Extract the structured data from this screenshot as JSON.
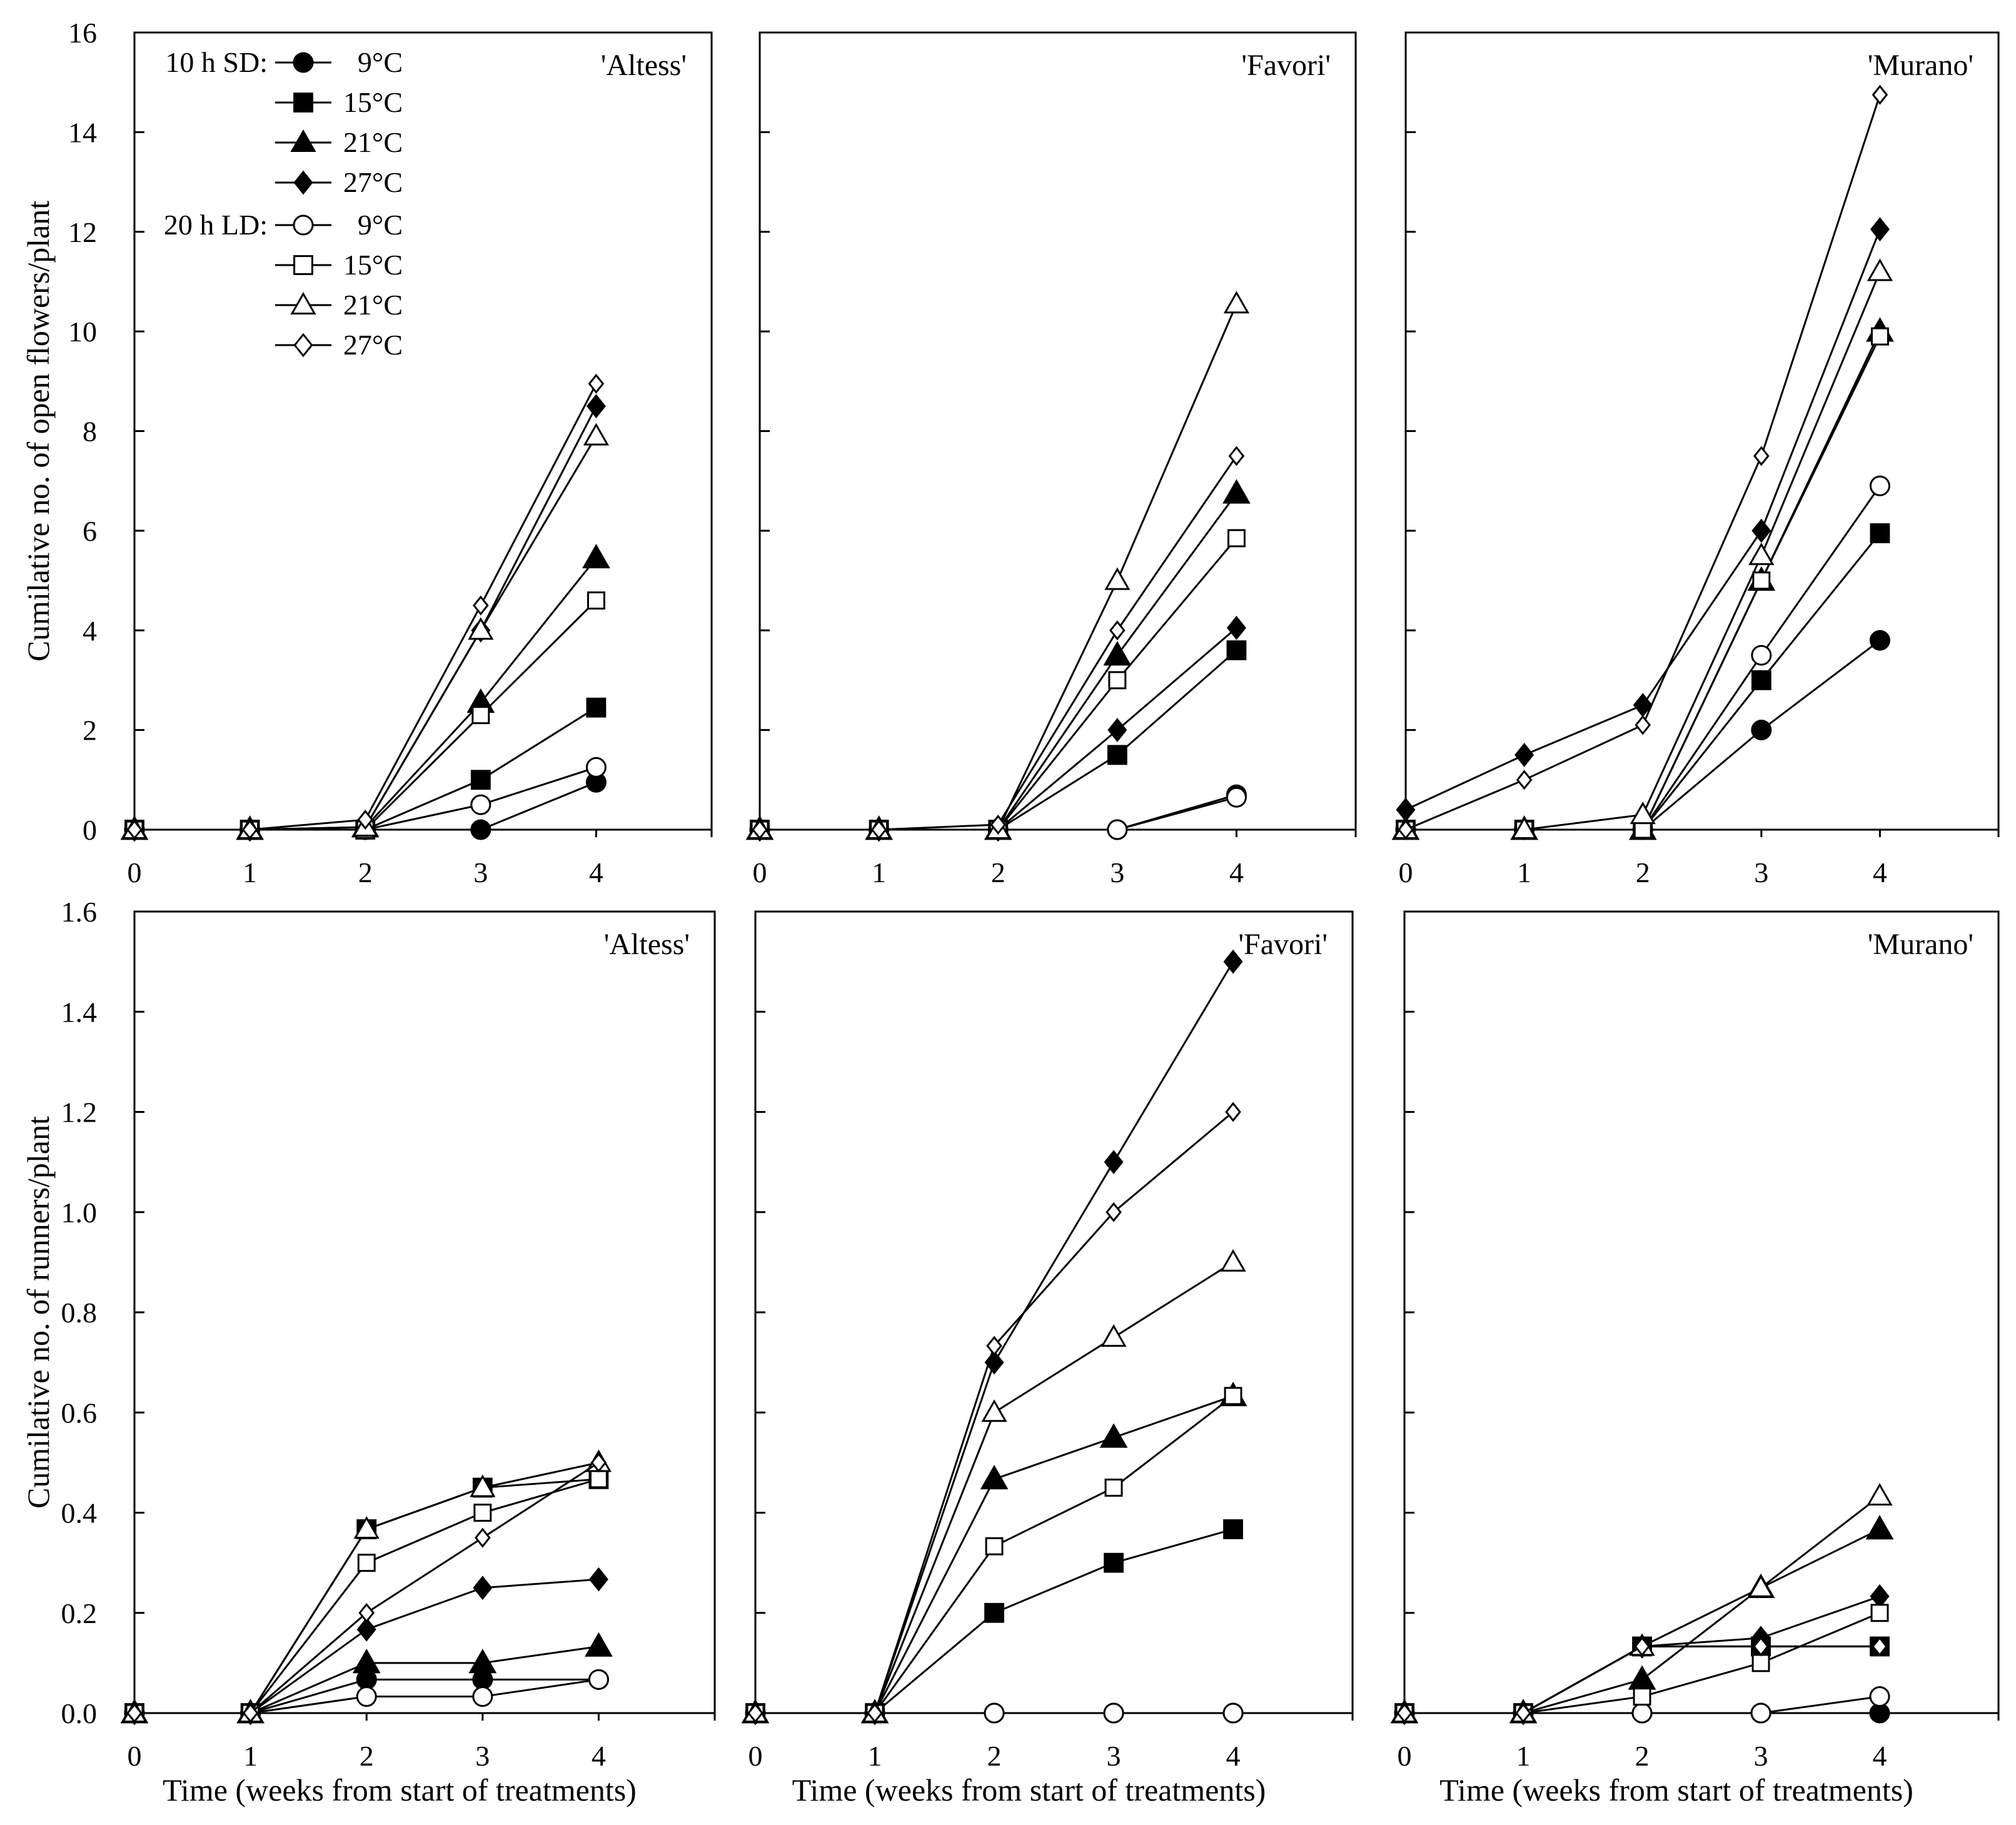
{
  "figure": {
    "legend_header_sd": "10 h SD:",
    "legend_header_ld": "20 h LD:",
    "legend": [
      {
        "label": "9°C",
        "marker": "circle",
        "filled": true
      },
      {
        "label": "15°C",
        "marker": "square",
        "filled": true
      },
      {
        "label": "21°C",
        "marker": "triangle",
        "filled": true
      },
      {
        "label": "27°C",
        "marker": "diamond",
        "filled": true
      },
      {
        "label": "9°C",
        "marker": "circle",
        "filled": false
      },
      {
        "label": "15°C",
        "marker": "square",
        "filled": false
      },
      {
        "label": "21°C",
        "marker": "triangle",
        "filled": false
      },
      {
        "label": "27°C",
        "marker": "diamond",
        "filled": false
      }
    ]
  },
  "chart_data": [
    {
      "type": "line",
      "title": "'Altess'",
      "ylabel": "Cumilative no. of open flowers/plant",
      "xlabel": "",
      "x": [
        0,
        1,
        2,
        3,
        4
      ],
      "xlim": [
        0,
        5
      ],
      "ylim": [
        0,
        16
      ],
      "yticks": [
        "0",
        "2",
        "4",
        "6",
        "8",
        "10",
        "12",
        "14",
        "16"
      ],
      "xticks": [
        "0",
        "1",
        "2",
        "3",
        "4"
      ],
      "series": [
        {
          "name": "10 h SD 9°C",
          "values": [
            0,
            0,
            0,
            0,
            0.95
          ]
        },
        {
          "name": "10 h SD 15°C",
          "values": [
            0,
            0,
            0,
            1.0,
            2.45
          ]
        },
        {
          "name": "10 h SD 21°C",
          "values": [
            0,
            0,
            0.05,
            2.55,
            5.45
          ]
        },
        {
          "name": "10 h SD 27°C",
          "values": [
            0,
            0,
            0.05,
            4.0,
            8.5
          ]
        },
        {
          "name": "20 h LD 9°C",
          "values": [
            0,
            0,
            0,
            0.5,
            1.25
          ]
        },
        {
          "name": "20 h LD 15°C",
          "values": [
            0,
            0,
            0,
            2.3,
            4.6
          ]
        },
        {
          "name": "20 h LD 21°C",
          "values": [
            0,
            0,
            0.05,
            4.0,
            7.9
          ]
        },
        {
          "name": "20 h LD 27°C",
          "values": [
            0,
            0,
            0.2,
            4.5,
            8.95
          ]
        }
      ]
    },
    {
      "type": "line",
      "title": "'Favori'",
      "ylabel": "",
      "xlabel": "",
      "x": [
        0,
        1,
        2,
        3,
        4
      ],
      "xlim": [
        0,
        5
      ],
      "ylim": [
        0,
        16
      ],
      "yticks": [],
      "xticks": [
        "0",
        "1",
        "2",
        "3",
        "4"
      ],
      "series": [
        {
          "name": "10 h SD 9°C",
          "values": [
            0,
            0,
            0,
            0,
            0.7
          ]
        },
        {
          "name": "10 h SD 15°C",
          "values": [
            0,
            0,
            0,
            1.5,
            3.6
          ]
        },
        {
          "name": "10 h SD 21°C",
          "values": [
            0,
            0,
            0,
            3.5,
            6.75
          ]
        },
        {
          "name": "10 h SD 27°C",
          "values": [
            0,
            0,
            0,
            2.0,
            4.05
          ]
        },
        {
          "name": "20 h LD 9°C",
          "values": [
            0,
            0,
            0,
            0,
            0.65
          ]
        },
        {
          "name": "20 h LD 15°C",
          "values": [
            0,
            0,
            0,
            3.0,
            5.85
          ]
        },
        {
          "name": "20 h LD 21°C",
          "values": [
            0,
            0,
            0,
            5.0,
            10.55
          ]
        },
        {
          "name": "20 h LD 27°C",
          "values": [
            0,
            0,
            0.1,
            4.0,
            7.5
          ]
        }
      ]
    },
    {
      "type": "line",
      "title": "'Murano'",
      "ylabel": "",
      "xlabel": "",
      "x": [
        0,
        1,
        2,
        3,
        4
      ],
      "xlim": [
        0,
        5
      ],
      "ylim": [
        0,
        16
      ],
      "yticks": [],
      "xticks": [
        "0",
        "1",
        "2",
        "3",
        "4"
      ],
      "series": [
        {
          "name": "10 h SD 9°C",
          "values": [
            0,
            0,
            0,
            2.0,
            3.8
          ]
        },
        {
          "name": "10 h SD 15°C",
          "values": [
            0,
            0,
            0,
            3.0,
            5.95
          ]
        },
        {
          "name": "10 h SD 21°C",
          "values": [
            0,
            0,
            0,
            5.0,
            10.0
          ]
        },
        {
          "name": "10 h SD 27°C",
          "values": [
            0.4,
            1.5,
            2.5,
            6.0,
            12.05
          ]
        },
        {
          "name": "20 h LD 9°C",
          "values": [
            0,
            0,
            0,
            3.5,
            6.9
          ]
        },
        {
          "name": "20 h LD 15°C",
          "values": [
            0,
            0,
            0,
            5.0,
            9.9
          ]
        },
        {
          "name": "20 h LD 21°C",
          "values": [
            0,
            0,
            0.3,
            5.5,
            11.2
          ]
        },
        {
          "name": "20 h LD 27°C",
          "values": [
            0,
            1.0,
            2.1,
            7.5,
            14.75
          ]
        }
      ]
    },
    {
      "type": "line",
      "title": "'Altess'",
      "ylabel": "Cumilative no. of runners/plant",
      "xlabel": "Time (weeks from start of treatments)",
      "x": [
        0,
        1,
        2,
        3,
        4
      ],
      "xlim": [
        0,
        5
      ],
      "ylim": [
        0,
        1.6
      ],
      "yticks": [
        "0.0",
        "0.2",
        "0.4",
        "0.6",
        "0.8",
        "1.0",
        "1.2",
        "1.4",
        "1.6"
      ],
      "xticks": [
        "0",
        "1",
        "2",
        "3",
        "4"
      ],
      "series": [
        {
          "name": "10 h SD 9°C",
          "values": [
            0,
            0,
            0.067,
            0.067,
            0.067
          ]
        },
        {
          "name": "10 h SD 15°C",
          "values": [
            0,
            0,
            0.367,
            0.45,
            0.467
          ]
        },
        {
          "name": "10 h SD 21°C",
          "values": [
            0,
            0,
            0.1,
            0.1,
            0.133
          ]
        },
        {
          "name": "10 h SD 27°C",
          "values": [
            0,
            0,
            0.167,
            0.25,
            0.267
          ]
        },
        {
          "name": "20 h LD 9°C",
          "values": [
            0,
            0,
            0.033,
            0.033,
            0.067
          ]
        },
        {
          "name": "20 h LD 15°C",
          "values": [
            0,
            0,
            0.3,
            0.4,
            0.467
          ]
        },
        {
          "name": "20 h LD 21°C",
          "values": [
            0,
            0,
            0.367,
            0.45,
            0.5
          ]
        },
        {
          "name": "20 h LD 27°C",
          "values": [
            0,
            0,
            0.2,
            0.35,
            0.5
          ]
        }
      ]
    },
    {
      "type": "line",
      "title": "'Favori'",
      "ylabel": "",
      "xlabel": "Time (weeks from start of treatments)",
      "x": [
        0,
        1,
        2,
        3,
        4
      ],
      "xlim": [
        0,
        5
      ],
      "ylim": [
        0,
        1.6
      ],
      "yticks": [],
      "xticks": [
        "0",
        "1",
        "2",
        "3",
        "4"
      ],
      "series": [
        {
          "name": "10 h SD 9°C",
          "values": [
            0,
            0,
            0,
            0,
            0
          ]
        },
        {
          "name": "10 h SD 15°C",
          "values": [
            0,
            0,
            0.2,
            0.3,
            0.367
          ]
        },
        {
          "name": "10 h SD 21°C",
          "values": [
            0,
            0,
            0.467,
            0.55,
            0.633
          ]
        },
        {
          "name": "10 h SD 27°C",
          "values": [
            0,
            0,
            0.7,
            1.1,
            1.5
          ]
        },
        {
          "name": "20 h LD 9°C",
          "values": [
            0,
            0,
            0,
            0,
            0
          ]
        },
        {
          "name": "20 h LD 15°C",
          "values": [
            0,
            0,
            0.333,
            0.45,
            0.633
          ]
        },
        {
          "name": "20 h LD 21°C",
          "values": [
            0,
            0,
            0.6,
            0.75,
            0.9
          ]
        },
        {
          "name": "20 h LD 27°C",
          "values": [
            0,
            0,
            0.733,
            1.0,
            1.2
          ]
        }
      ]
    },
    {
      "type": "line",
      "title": "'Murano'",
      "ylabel": "",
      "xlabel": "Time (weeks from start of treatments)",
      "x": [
        0,
        1,
        2,
        3,
        4
      ],
      "xlim": [
        0,
        5
      ],
      "ylim": [
        0,
        1.6
      ],
      "yticks": [],
      "xticks": [
        "0",
        "1",
        "2",
        "3",
        "4"
      ],
      "series": [
        {
          "name": "10 h SD 9°C",
          "values": [
            0,
            0,
            0,
            0,
            0
          ]
        },
        {
          "name": "10 h SD 15°C",
          "values": [
            0,
            0,
            0.133,
            0.133,
            0.133
          ]
        },
        {
          "name": "10 h SD 21°C",
          "values": [
            0,
            0,
            0.067,
            0.25,
            0.367
          ]
        },
        {
          "name": "10 h SD 27°C",
          "values": [
            0,
            0,
            0.133,
            0.15,
            0.233
          ]
        },
        {
          "name": "20 h LD 9°C",
          "values": [
            0,
            0,
            0,
            0,
            0.033
          ]
        },
        {
          "name": "20 h LD 15°C",
          "values": [
            0,
            0,
            0.033,
            0.1,
            0.2
          ]
        },
        {
          "name": "20 h LD 21°C",
          "values": [
            0,
            0,
            0.133,
            0.25,
            0.433
          ]
        },
        {
          "name": "20 h LD 27°C",
          "values": [
            0,
            0,
            0.133,
            0.133,
            0.133
          ]
        }
      ]
    }
  ]
}
